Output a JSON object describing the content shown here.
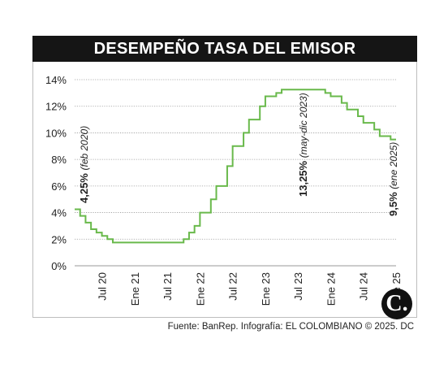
{
  "title": "DESEMPEÑO TASA DEL EMISOR",
  "source": "Fuente: BanRep. Infografía: EL COLOMBIANO © 2025. DC",
  "logo_text": "C.",
  "colors": {
    "line": "#69b94b",
    "grid": "#9a9a9a",
    "title_bg": "#151515",
    "text": "#222222"
  },
  "chart_data": {
    "type": "line",
    "step": true,
    "grid": true,
    "ylim": [
      0,
      14
    ],
    "yticks": [
      "0%",
      "2%",
      "4%",
      "6%",
      "8%",
      "10%",
      "12%",
      "14%"
    ],
    "x_range": [
      2020.0833,
      2025.0
    ],
    "xtick_labels": [
      {
        "label": "Jul 20",
        "x": 2020.5
      },
      {
        "label": "Ene 21",
        "x": 2021.0
      },
      {
        "label": "Jul 21",
        "x": 2021.5
      },
      {
        "label": "Ene 22",
        "x": 2022.0
      },
      {
        "label": "Jul 22",
        "x": 2022.5
      },
      {
        "label": "Ene 23",
        "x": 2023.0
      },
      {
        "label": "Jul 23",
        "x": 2023.5
      },
      {
        "label": "Ene 24",
        "x": 2024.0
      },
      {
        "label": "Jul 24",
        "x": 2024.5
      },
      {
        "label": "Ene 25",
        "x": 2025.0
      }
    ],
    "series": [
      {
        "x": [
          2020.0833,
          2020.1667,
          2020.25,
          2020.3333,
          2020.4167,
          2020.5,
          2020.5833,
          2020.6667,
          2021.75,
          2021.8333,
          2021.9167,
          2022.0,
          2022.0833,
          2022.1667,
          2022.25,
          2022.3333,
          2022.4167,
          2022.5,
          2022.5833,
          2022.6667,
          2022.75,
          2022.8333,
          2022.9167,
          2023.0,
          2023.0833,
          2023.1667,
          2023.25,
          2023.3333,
          2023.9167,
          2024.0,
          2024.0833,
          2024.1667,
          2024.25,
          2024.3333,
          2024.4167,
          2024.5,
          2024.5833,
          2024.6667,
          2024.75,
          2024.8333,
          2024.9167,
          2025.0
        ],
        "y": [
          4.25,
          3.75,
          3.25,
          2.75,
          2.5,
          2.25,
          2.0,
          1.75,
          2.0,
          2.5,
          3.0,
          4.0,
          4.0,
          5.0,
          6.0,
          6.0,
          7.5,
          9.0,
          9.0,
          10.0,
          11.0,
          11.0,
          12.0,
          12.75,
          12.75,
          13.0,
          13.25,
          13.25,
          13.0,
          12.75,
          12.75,
          12.25,
          11.75,
          11.75,
          11.25,
          10.75,
          10.75,
          10.25,
          9.75,
          9.75,
          9.5,
          9.5
        ]
      }
    ],
    "annotations": [
      {
        "value": "4,25%",
        "label": "(feb 2020)",
        "x": 2020.0833
      },
      {
        "value": "13,25%",
        "label": "(may-dic 2023)",
        "x": 2023.5
      },
      {
        "value": "9,5%",
        "label": "(ene 2025)",
        "x": 2025.0
      }
    ]
  }
}
